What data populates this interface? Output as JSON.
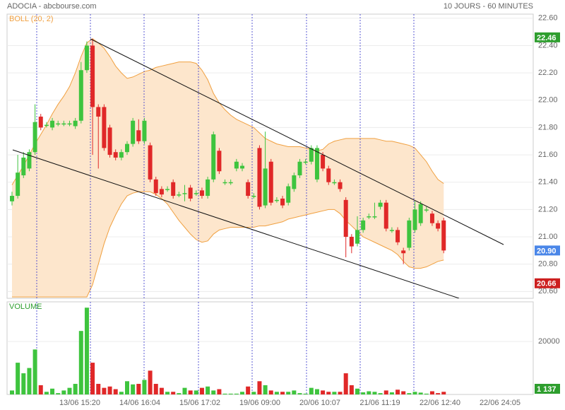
{
  "header": {
    "title": "ADOCIA - abcbourse.com",
    "period": "10 JOURS - 60 MINUTES"
  },
  "chart_data": [
    {
      "type": "candlestick",
      "up_color": "#3ec43e",
      "down_color": "#e02828",
      "open": [
        21.26,
        21.3,
        21.45,
        21.5,
        21.62,
        21.88,
        21.82,
        21.8,
        21.83,
        21.83,
        21.83,
        21.81,
        21.85,
        22.22,
        22.4,
        21.95,
        21.95,
        21.8,
        21.62,
        21.58,
        21.62,
        21.68,
        21.78,
        21.7,
        21.67,
        21.42,
        21.35,
        21.35,
        21.4,
        21.31,
        21.32,
        21.36,
        21.32,
        21.34,
        21.3,
        21.42,
        21.63,
        21.4,
        21.4,
        21.5,
        21.5,
        21.4,
        21.3,
        21.65,
        21.23,
        21.55,
        21.27,
        21.28,
        21.25,
        21.35,
        21.45,
        21.55,
        21.55,
        21.42,
        21.6,
        21.5,
        21.4,
        21.4,
        21.27,
        21.0,
        20.95,
        21.05,
        21.15,
        21.15,
        21.22,
        21.25,
        21.05,
        21.05,
        20.9,
        20.92,
        21.05,
        21.1,
        21.2,
        21.17,
        21.1,
        21.12
      ],
      "high": [
        21.33,
        21.6,
        21.62,
        21.64,
        21.97,
        21.9,
        21.84,
        21.87,
        21.85,
        21.85,
        21.85,
        21.87,
        22.28,
        22.43,
        22.45,
        21.97,
        21.97,
        21.82,
        21.64,
        21.64,
        21.7,
        21.87,
        21.86,
        21.87,
        21.69,
        21.44,
        21.37,
        21.37,
        21.42,
        21.33,
        21.38,
        21.38,
        21.34,
        21.36,
        21.44,
        21.77,
        21.65,
        21.42,
        21.42,
        21.57,
        21.54,
        21.42,
        21.32,
        21.67,
        21.77,
        21.57,
        21.29,
        21.3,
        21.39,
        21.47,
        21.57,
        21.57,
        21.67,
        21.67,
        21.62,
        21.52,
        21.42,
        21.42,
        21.29,
        21.02,
        21.15,
        21.14,
        21.17,
        21.25,
        21.27,
        21.27,
        21.07,
        21.07,
        20.92,
        21.14,
        21.26,
        21.26,
        21.22,
        21.19,
        21.12,
        21.14
      ],
      "low": [
        21.23,
        21.28,
        21.43,
        21.48,
        21.6,
        21.78,
        21.8,
        21.78,
        21.81,
        21.81,
        21.81,
        21.79,
        21.83,
        22.2,
        21.6,
        21.5,
        21.63,
        21.58,
        21.56,
        21.56,
        21.6,
        21.66,
        21.68,
        21.68,
        21.4,
        21.3,
        21.29,
        21.33,
        21.28,
        21.29,
        21.26,
        21.26,
        21.3,
        21.28,
        21.28,
        21.4,
        21.46,
        21.38,
        21.38,
        21.48,
        21.48,
        21.28,
        21.28,
        21.2,
        21.21,
        21.23,
        21.25,
        21.21,
        21.23,
        21.33,
        21.43,
        21.53,
        21.53,
        21.4,
        21.48,
        21.38,
        21.38,
        21.33,
        20.85,
        20.88,
        20.93,
        21.03,
        21.13,
        21.13,
        21.2,
        21.04,
        21.03,
        20.94,
        20.8,
        20.9,
        21.03,
        21.08,
        21.18,
        21.08,
        21.04,
        20.88
      ],
      "close": [
        21.3,
        21.47,
        21.58,
        21.62,
        21.84,
        21.8,
        21.82,
        21.85,
        21.83,
        21.83,
        21.83,
        21.85,
        22.22,
        22.4,
        21.95,
        21.88,
        21.65,
        21.6,
        21.58,
        21.62,
        21.68,
        21.85,
        21.7,
        21.85,
        21.42,
        21.32,
        21.31,
        21.35,
        21.3,
        21.31,
        21.32,
        21.28,
        21.32,
        21.3,
        21.42,
        21.75,
        21.48,
        21.4,
        21.4,
        21.55,
        21.52,
        21.3,
        21.3,
        21.22,
        21.5,
        21.25,
        21.27,
        21.23,
        21.37,
        21.45,
        21.55,
        21.55,
        21.65,
        21.65,
        21.5,
        21.4,
        21.4,
        21.35,
        21.0,
        20.93,
        21.05,
        21.12,
        21.15,
        21.15,
        21.25,
        21.06,
        21.05,
        20.96,
        20.88,
        21.12,
        21.2,
        21.24,
        21.2,
        21.1,
        21.06,
        20.9
      ],
      "bollinger": {
        "name": "BOLL (20, 2)",
        "color": "#f0a040",
        "fill": "#fde6cc",
        "upper": [
          21.38,
          21.45,
          21.52,
          21.6,
          21.68,
          21.75,
          21.82,
          21.9,
          21.97,
          22.03,
          22.1,
          22.2,
          22.32,
          22.42,
          22.45,
          22.42,
          22.38,
          22.32,
          22.25,
          22.2,
          22.16,
          22.17,
          22.19,
          22.21,
          22.22,
          22.24,
          22.25,
          22.26,
          22.27,
          22.28,
          22.28,
          22.28,
          22.27,
          22.22,
          22.15,
          22.05,
          21.98,
          21.93,
          21.89,
          21.86,
          21.84,
          21.82,
          21.8,
          21.76,
          21.72,
          21.7,
          21.68,
          21.67,
          21.66,
          21.66,
          21.66,
          21.65,
          21.64,
          21.63,
          21.64,
          21.68,
          21.7,
          21.71,
          21.72,
          21.72,
          21.72,
          21.72,
          21.72,
          21.72,
          21.71,
          21.7,
          21.7,
          21.69,
          21.68,
          21.67,
          21.65,
          21.6,
          21.55,
          21.48,
          21.42,
          21.39
        ],
        "lower": [
          20.56,
          20.56,
          20.56,
          20.56,
          20.56,
          20.56,
          20.56,
          20.56,
          20.56,
          20.56,
          20.56,
          20.56,
          20.56,
          20.56,
          20.65,
          20.8,
          20.95,
          21.07,
          21.16,
          21.24,
          21.3,
          21.32,
          21.33,
          21.33,
          21.33,
          21.31,
          21.28,
          21.24,
          21.18,
          21.12,
          21.07,
          21.02,
          20.98,
          20.96,
          20.97,
          21.02,
          21.05,
          21.06,
          21.07,
          21.07,
          21.07,
          21.07,
          21.07,
          21.08,
          21.08,
          21.09,
          21.1,
          21.11,
          21.13,
          21.14,
          21.15,
          21.16,
          21.17,
          21.18,
          21.19,
          21.2,
          21.2,
          21.17,
          21.12,
          21.08,
          21.04,
          21.0,
          20.98,
          20.96,
          20.94,
          20.92,
          20.9,
          20.87,
          20.82,
          20.78,
          20.77,
          20.77,
          20.78,
          20.8,
          20.82,
          20.83
        ]
      },
      "ylim": [
        20.55,
        22.63
      ],
      "yticks": [
        {
          "value": 20.6,
          "label": "20.60"
        },
        {
          "value": 20.8,
          "label": "20.80"
        },
        {
          "value": 21.0,
          "label": "21.00"
        },
        {
          "value": 21.2,
          "label": "21.20"
        },
        {
          "value": 21.4,
          "label": "21.40"
        },
        {
          "value": 21.6,
          "label": "21.60"
        },
        {
          "value": 21.8,
          "label": "21.80"
        },
        {
          "value": 22.0,
          "label": "22.00"
        },
        {
          "value": 22.2,
          "label": "22.20"
        },
        {
          "value": 22.4,
          "label": "22.40"
        },
        {
          "value": 22.6,
          "label": "22.60"
        }
      ],
      "price_markers": [
        {
          "value": 22.46,
          "color": "#2e9e2e"
        },
        {
          "value": 20.9,
          "label": "20.90",
          "color": "#4a86e8"
        },
        {
          "value": 20.66,
          "color": "#cc1f1f"
        }
      ],
      "xticks": [
        "13/06 15:20",
        "14/06 16:04",
        "15/06 17:02",
        "19/06 09:00",
        "20/06 10:07",
        "21/06 11:19",
        "22/06 12:40",
        "22/06 24:05"
      ]
    },
    {
      "type": "bar",
      "name": "VOLUME",
      "color": "#3ec43e",
      "values": [
        1500,
        12000,
        8000,
        10000,
        17000,
        3500,
        1000,
        2200,
        500,
        1500,
        2500,
        4000,
        24000,
        32800,
        12000,
        4000,
        2500,
        3000,
        2000,
        1000,
        5000,
        3800,
        4000,
        5500,
        9000,
        4000,
        2500,
        1000,
        1000,
        500,
        2500,
        1500,
        1500,
        2500,
        3000,
        1500,
        2000,
        300,
        300,
        300,
        1000,
        3000,
        1000,
        5000,
        3500,
        1500,
        1000,
        1000,
        1000,
        1500,
        500,
        300,
        2500,
        2000,
        1500,
        1000,
        1000,
        1000,
        8000,
        3500,
        2200,
        800,
        1200,
        1000,
        500,
        1500,
        800,
        1800,
        1200,
        500,
        1000,
        700,
        300,
        1200,
        500,
        1000
      ],
      "ylim": [
        0,
        35000
      ],
      "yticks": [
        20000
      ],
      "last_marker": {
        "value": 1137,
        "label": "1 137",
        "color": "#2e9e2e"
      }
    }
  ]
}
